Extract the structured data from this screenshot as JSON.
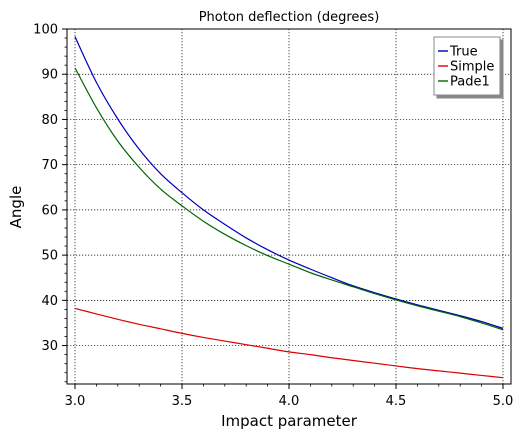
{
  "chart_data": {
    "type": "line",
    "title": "Photon deflection (degrees)",
    "xlabel": "Impact parameter",
    "ylabel": "Angle",
    "xlim": [
      3.0,
      5.0
    ],
    "ylim": [
      21.5,
      100
    ],
    "xticks": [
      3.0,
      3.5,
      4.0,
      4.5,
      5.0
    ],
    "xtick_labels": [
      "3.0",
      "3.5",
      "4.0",
      "4.5",
      "5.0"
    ],
    "yticks": [
      30,
      40,
      50,
      60,
      70,
      80,
      90,
      100
    ],
    "ytick_labels": [
      "30",
      "40",
      "50",
      "60",
      "70",
      "80",
      "90",
      "100"
    ],
    "grid": true,
    "legend_position": "top-right",
    "x": [
      3.0,
      3.1,
      3.2,
      3.3,
      3.4,
      3.5,
      3.6,
      3.7,
      3.8,
      3.9,
      4.0,
      4.1,
      4.2,
      4.3,
      4.4,
      4.5,
      4.6,
      4.7,
      4.8,
      4.9,
      5.0
    ],
    "series": [
      {
        "name": "True",
        "color": "#0000bb",
        "values": [
          98.3,
          88.2,
          80.1,
          73.4,
          68.0,
          63.8,
          60.0,
          56.8,
          53.8,
          51.2,
          48.9,
          46.9,
          45.0,
          43.2,
          41.7,
          40.3,
          39.0,
          37.8,
          36.6,
          35.3,
          33.8
        ]
      },
      {
        "name": "Simple",
        "color": "#dd0000",
        "values": [
          38.2,
          37.0,
          35.8,
          34.7,
          33.7,
          32.7,
          31.8,
          31.0,
          30.2,
          29.4,
          28.6,
          28.0,
          27.3,
          26.7,
          26.1,
          25.5,
          24.9,
          24.4,
          23.9,
          23.4,
          22.9
        ]
      },
      {
        "name": "Pade1",
        "color": "#006600",
        "values": [
          91.4,
          82.6,
          75.2,
          69.4,
          64.6,
          60.9,
          57.5,
          54.6,
          52.1,
          49.9,
          48.0,
          46.1,
          44.5,
          43.0,
          41.5,
          40.1,
          38.8,
          37.6,
          36.4,
          35.0,
          33.5
        ]
      }
    ]
  }
}
